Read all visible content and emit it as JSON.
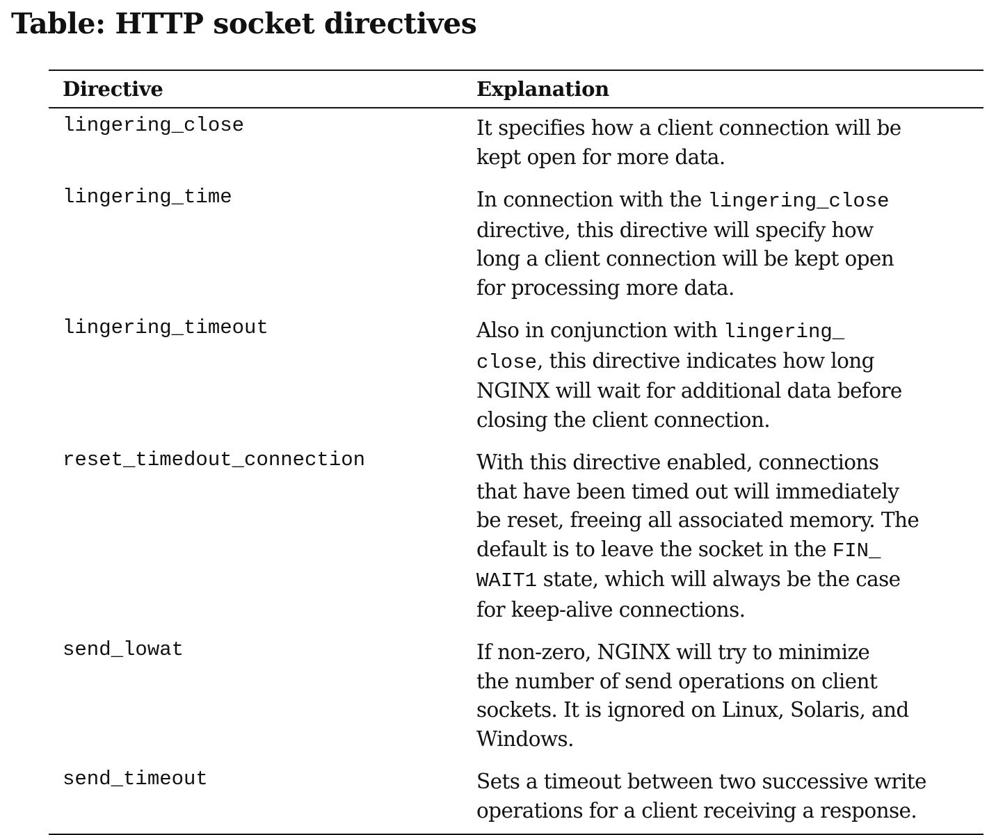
{
  "title": "Table: HTTP socket directives",
  "table": {
    "headers": {
      "directive": "Directive",
      "explanation": "Explanation"
    },
    "rows": [
      {
        "directive": "lingering_close",
        "explanation": [
          {
            "t": "It specifies how a client connection will be"
          },
          {
            "br": true
          },
          {
            "t": "kept open for more data."
          }
        ]
      },
      {
        "directive": "lingering_time",
        "explanation": [
          {
            "t": "In connection with the "
          },
          {
            "code": "lingering_close"
          },
          {
            "br": true
          },
          {
            "t": "directive, this directive will specify how"
          },
          {
            "br": true
          },
          {
            "t": "long a client connection will be kept open"
          },
          {
            "br": true
          },
          {
            "t": "for processing more data."
          }
        ]
      },
      {
        "directive": "lingering_timeout",
        "explanation": [
          {
            "t": "Also in conjunction with "
          },
          {
            "code": "lingering_"
          },
          {
            "br": true
          },
          {
            "code": "close"
          },
          {
            "t": ", this directive indicates how long"
          },
          {
            "br": true
          },
          {
            "t": "NGINX will wait for additional data before"
          },
          {
            "br": true
          },
          {
            "t": "closing the client connection."
          }
        ]
      },
      {
        "directive": "reset_timedout_connection",
        "explanation": [
          {
            "t": "With this directive enabled, connections"
          },
          {
            "br": true
          },
          {
            "t": "that have been timed out will immediately"
          },
          {
            "br": true
          },
          {
            "t": "be reset, freeing all associated memory. The"
          },
          {
            "br": true
          },
          {
            "t": "default is to leave the socket in the "
          },
          {
            "code": "FIN_"
          },
          {
            "br": true
          },
          {
            "code": "WAIT1"
          },
          {
            "t": " state, which will always be the case"
          },
          {
            "br": true
          },
          {
            "t": "for keep-alive connections."
          }
        ]
      },
      {
        "directive": "send_lowat",
        "explanation": [
          {
            "t": "If non-zero, NGINX will try to minimize"
          },
          {
            "br": true
          },
          {
            "t": "the number of send operations on client"
          },
          {
            "br": true
          },
          {
            "t": "sockets. It is ignored on Linux, Solaris, and"
          },
          {
            "br": true
          },
          {
            "t": "Windows."
          }
        ]
      },
      {
        "directive": "send_timeout",
        "explanation": [
          {
            "t": "Sets a timeout between two successive write"
          },
          {
            "br": true
          },
          {
            "t": "operations for a client receiving a response."
          }
        ]
      }
    ]
  }
}
